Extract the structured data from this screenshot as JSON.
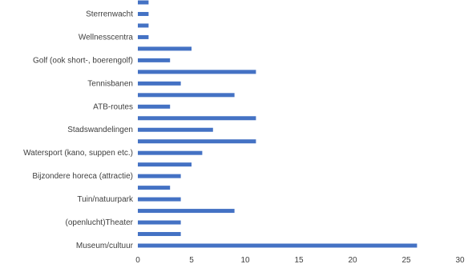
{
  "chart_data": {
    "type": "bar",
    "orientation": "horizontal",
    "title": "",
    "xlabel": "",
    "ylabel": "",
    "xlim": [
      0,
      30
    ],
    "xticks": [
      0,
      5,
      10,
      15,
      20,
      25,
      30
    ],
    "grid": false,
    "legend": "none",
    "bar_color": "#4472C4",
    "categories": [
      "Museum/cultuur",
      "",
      "(openlucht)Theater",
      "",
      "Tuin/natuurpark",
      "",
      "Bijzondere horeca (attractie)",
      "",
      "Watersport (kano, suppen etc.)",
      "",
      "Stadswandelingen",
      "",
      "ATB-routes",
      "",
      "Tennisbanen",
      "",
      "Golf (ook short-, boerengolf)",
      "",
      "Wellnesscentra",
      "",
      "Sterrenwacht",
      ""
    ],
    "values": [
      26,
      4,
      4,
      9,
      4,
      3,
      4,
      5,
      6,
      11,
      7,
      11,
      3,
      9,
      4,
      11,
      3,
      5,
      1,
      1,
      1,
      1
    ]
  }
}
